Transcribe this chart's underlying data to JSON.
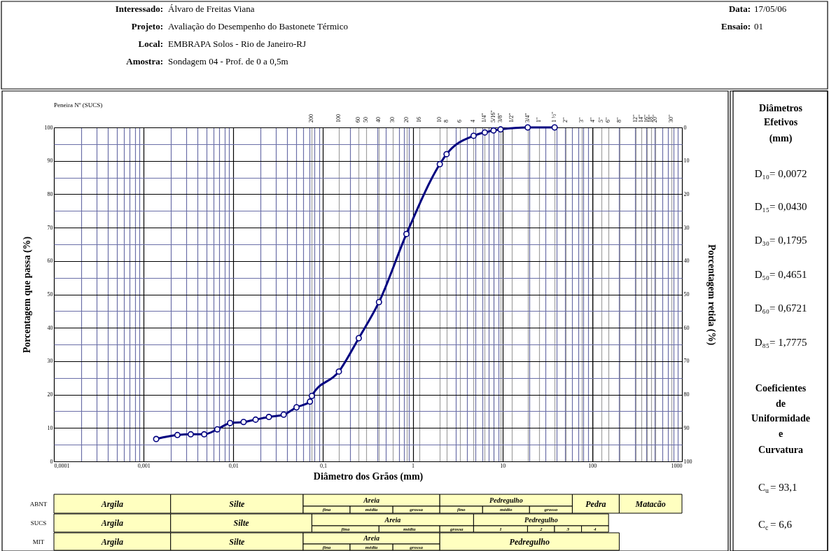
{
  "chart_data": {
    "type": "line",
    "xlabel": "Diâmetro dos Grãos (mm)",
    "ylabel": "Porcentagem que passa (%)",
    "y2label": "Porcentagem retida (%)",
    "log": "x",
    "grid": true,
    "marker": "circle",
    "line_style": "solid",
    "xlim": [
      0.0001,
      1000
    ],
    "ylim": [
      0,
      100
    ],
    "y2lim": [
      100,
      0
    ],
    "xticks": [
      {
        "value": 0.0001,
        "label": "0,0001"
      },
      {
        "value": 0.0002,
        "label": null
      },
      {
        "value": 0.0003,
        "label": null
      },
      {
        "value": 0.0004,
        "label": null
      },
      {
        "value": 0.0005,
        "label": null
      },
      {
        "value": 0.0006,
        "label": null
      },
      {
        "value": 0.0007,
        "label": null
      },
      {
        "value": 0.0008,
        "label": null
      },
      {
        "value": 0.0009,
        "label": null
      },
      {
        "value": 0.001,
        "label": "0,001"
      },
      {
        "value": 0.002,
        "label": null
      },
      {
        "value": 0.003,
        "label": null
      },
      {
        "value": 0.004,
        "label": null
      },
      {
        "value": 0.005,
        "label": null
      },
      {
        "value": 0.006,
        "label": null
      },
      {
        "value": 0.007,
        "label": null
      },
      {
        "value": 0.008,
        "label": null
      },
      {
        "value": 0.009,
        "label": null
      },
      {
        "value": 0.01,
        "label": "0,01"
      },
      {
        "value": 0.02,
        "label": null
      },
      {
        "value": 0.03,
        "label": null
      },
      {
        "value": 0.04,
        "label": null
      },
      {
        "value": 0.05,
        "label": null
      },
      {
        "value": 0.06,
        "label": null
      },
      {
        "value": 0.07,
        "label": null
      },
      {
        "value": 0.08,
        "label": null
      },
      {
        "value": 0.09,
        "label": null
      },
      {
        "value": 0.1,
        "label": "0,1"
      },
      {
        "value": 0.2,
        "label": null
      },
      {
        "value": 0.3,
        "label": null
      },
      {
        "value": 0.4,
        "label": null
      },
      {
        "value": 0.5,
        "label": null
      },
      {
        "value": 0.6,
        "label": null
      },
      {
        "value": 0.7,
        "label": null
      },
      {
        "value": 0.8,
        "label": null
      },
      {
        "value": 0.9,
        "label": null
      },
      1,
      {
        "value": 2,
        "label": null
      },
      {
        "value": 3,
        "label": null
      },
      {
        "value": 4,
        "label": null
      },
      {
        "value": 5,
        "label": null
      },
      {
        "value": 6,
        "label": null
      },
      {
        "value": 7,
        "label": null
      },
      {
        "value": 8,
        "label": null
      },
      {
        "value": 9,
        "label": null
      },
      10,
      {
        "value": 20,
        "label": null
      },
      {
        "value": 30,
        "label": null
      },
      {
        "value": 40,
        "label": null
      },
      {
        "value": 50,
        "label": null
      },
      {
        "value": 60,
        "label": null
      },
      {
        "value": 70,
        "label": null
      },
      {
        "value": 80,
        "label": null
      },
      {
        "value": 90,
        "label": null
      },
      100,
      {
        "value": 200,
        "label": null
      },
      {
        "value": 300,
        "label": null
      },
      {
        "value": 400,
        "label": null
      },
      {
        "value": 500,
        "label": null
      },
      {
        "value": 600,
        "label": null
      },
      {
        "value": 700,
        "label": null
      },
      {
        "value": 800,
        "label": null
      },
      {
        "value": 900,
        "label": null
      },
      1000,
      {
        "value": 0.075,
        "label": null
      },
      {
        "value": 0.15,
        "label": null
      },
      {
        "value": 0.25,
        "label": null
      },
      {
        "value": 0.3,
        "label": null
      },
      {
        "value": 0.42,
        "label": null
      },
      {
        "value": 0.6,
        "label": null
      },
      {
        "value": 0.85,
        "label": null
      },
      {
        "value": 1.18,
        "label": null
      },
      {
        "value": 2.0,
        "label": null
      },
      {
        "value": 2.38,
        "label": null
      },
      {
        "value": 3.36,
        "label": null
      },
      {
        "value": 4.76,
        "label": null
      },
      {
        "value": 6.35,
        "label": null
      },
      {
        "value": 7.94,
        "label": null
      },
      {
        "value": 9.52,
        "label": null
      },
      {
        "value": 12.7,
        "label": null
      },
      {
        "value": 19.1,
        "label": null
      },
      {
        "value": 25.4,
        "label": null
      },
      {
        "value": 38.1,
        "label": null
      },
      {
        "value": 50.8,
        "label": null
      },
      {
        "value": 76.2,
        "label": null
      },
      {
        "value": 101.6,
        "label": null
      },
      {
        "value": 127,
        "label": null
      },
      {
        "value": 152.4,
        "label": null
      },
      {
        "value": 203.2,
        "label": null
      },
      {
        "value": 304.8,
        "label": null
      },
      {
        "value": 355.6,
        "label": null
      },
      {
        "value": 406.4,
        "label": null
      },
      {
        "value": 457.2,
        "label": null
      },
      {
        "value": 508,
        "label": null
      },
      {
        "value": 762,
        "label": null
      }
    ],
    "yticks": [
      0,
      {
        "value": 5,
        "label": null
      },
      10,
      {
        "value": 15,
        "label": null
      },
      20,
      {
        "value": 25,
        "label": null
      },
      30,
      {
        "value": 35,
        "label": null
      },
      40,
      {
        "value": 45,
        "label": null
      },
      50,
      {
        "value": 55,
        "label": null
      },
      60,
      {
        "value": 65,
        "label": null
      },
      70,
      {
        "value": 75,
        "label": null
      },
      80,
      {
        "value": 85,
        "label": null
      },
      90,
      {
        "value": 95,
        "label": null
      },
      100
    ],
    "y2ticks": [
      0,
      10,
      20,
      30,
      40,
      50,
      60,
      70,
      80,
      90,
      100
    ],
    "series": [
      {
        "color": "#000080",
        "x": [
          0.00138,
          0.00238,
          0.00335,
          0.00473,
          0.00662,
          0.0092,
          0.013,
          0.0177,
          0.0249,
          0.0364,
          0.0506,
          0.0714,
          0.075,
          0.15,
          0.25,
          0.42,
          0.85,
          2.0,
          2.38,
          4.76,
          6.35,
          7.94,
          9.52,
          19.1,
          38.1
        ],
        "values": [
          6.7,
          7.9,
          8.1,
          8.1,
          9.6,
          11.5,
          11.8,
          12.5,
          13.3,
          14.0,
          16.2,
          17.9,
          19.6,
          26.9,
          36.9,
          47.7,
          68.1,
          89.0,
          92.0,
          97.5,
          98.5,
          99.1,
          99.4,
          100,
          100
        ]
      }
    ],
    "annotations": [
      "Peneira Nº  (SUCS)",
      "Interessado:",
      "Álvaro de Freitas Viana",
      "Projeto:",
      "Avaliação do Desempenho do Bastonete Térmico",
      "Local:",
      "EMBRAPA Solos - Rio de Janeiro-RJ",
      "Amostra:",
      "Sondagem 04 - Prof. de 0 a 0,5m",
      "Data:",
      "17/05/06",
      "Ensaio:",
      "01",
      "Diâmetros",
      "Efetivos",
      "(mm)",
      "D₁₀= 0,0072",
      "D₁₅= 0,0430",
      "D₃₀= 0,1795",
      "D₅₀= 0,4651",
      "D₆₀= 0,6721",
      "D₈₅= 1,7775",
      "Coeficientes",
      "de",
      "Uniformidade",
      "e",
      "Curvatura",
      "C$_{u}$= 93,1",
      "C$_{c}$= 6,6",
      "ABNT",
      "SUCS",
      "MIT",
      "Argila",
      "Silte",
      "Areia",
      "fina",
      "média",
      "grossa",
      "Pedregulho",
      "fino",
      "médio",
      "grosso",
      "Pedra",
      "Matacão",
      "Argila",
      "Silte",
      "Areia",
      "fina",
      "média",
      "grossa",
      "Pedregulho",
      "1",
      "2",
      "3",
      "4",
      "Argila",
      "Silte",
      "Areia",
      "fina",
      "média",
      "grossa",
      "Pedregulho",
      "200",
      "100",
      "60",
      "50",
      "40",
      "30",
      "20",
      "16",
      "10",
      "8",
      "6",
      "4",
      "1/4\"",
      "5/16\"",
      "3/8\"",
      "1/2\"",
      "3/4\"",
      "1\"",
      "1 ½\"",
      "2\"",
      "3\"",
      "4\"",
      "5\"",
      "6\"",
      "8\"",
      "12\"",
      "14\"",
      "16\"",
      "18\"",
      "20\"",
      "30\""
    ]
  }
}
